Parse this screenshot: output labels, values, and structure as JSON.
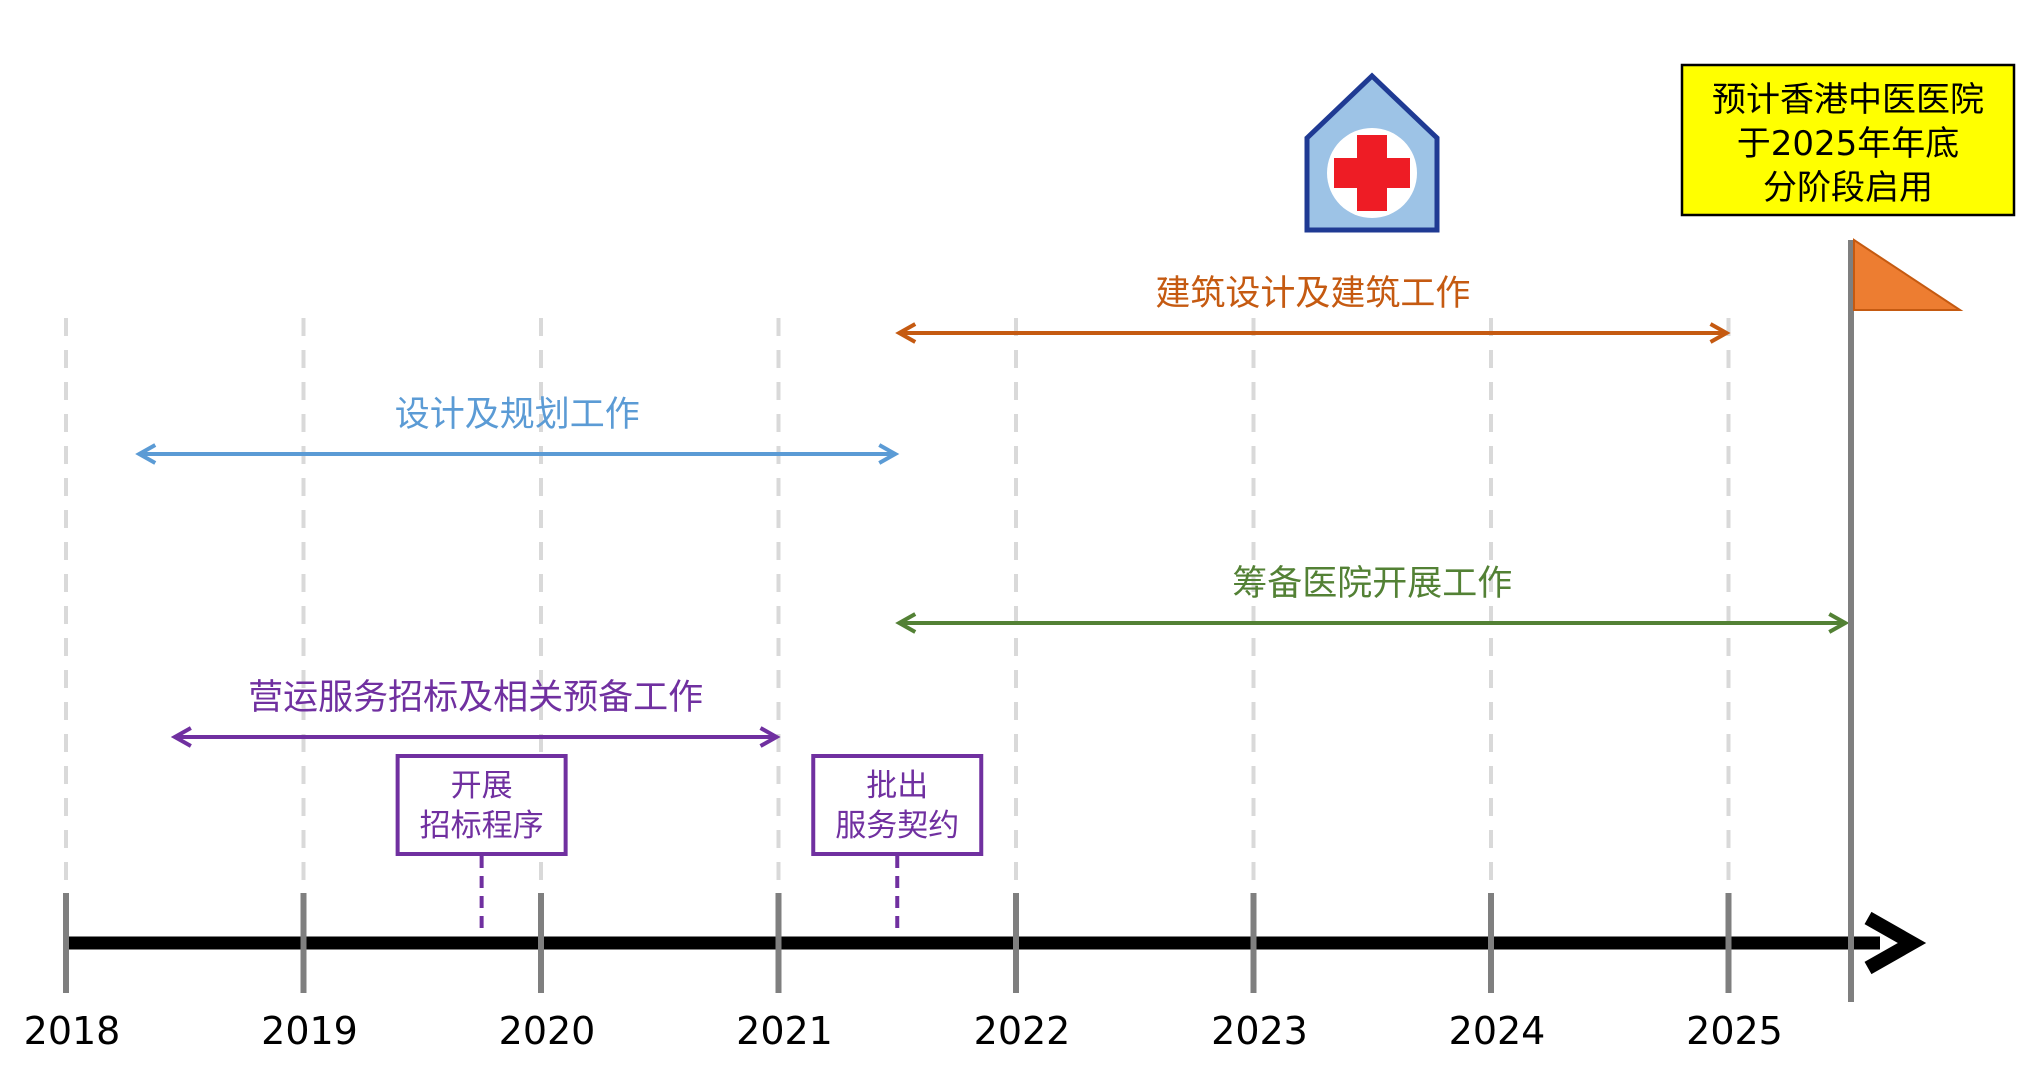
{
  "timeline": {
    "years": [
      "2018",
      "2019",
      "2020",
      "2021",
      "2022",
      "2023",
      "2024",
      "2025"
    ]
  },
  "milestone": {
    "lines": [
      "预计香港中医医院",
      "于2025年年底",
      "分阶段启用"
    ],
    "box_color": "#ffff00"
  },
  "hospital_icon": {
    "name": "hospital-icon",
    "fill": "#9dc3e6",
    "outline": "#1f3a93",
    "cross": "#ee1c25"
  },
  "phases": [
    {
      "id": "design-planning",
      "label": "设计及规划工作",
      "color": "#5b9bd5",
      "start": 2018.3,
      "end": 2021.5
    },
    {
      "id": "construction",
      "label": "建筑设计及建筑工作",
      "color": "#c55a11",
      "start": 2021.5,
      "end": 2025.0
    },
    {
      "id": "hospital-preparation",
      "label": "筹备医院开展工作",
      "color": "#538135",
      "start": 2021.5,
      "end": 2025.5
    },
    {
      "id": "operation-tender",
      "label": "营运服务招标及相关预备工作",
      "color": "#7030a0",
      "start": 2018.45,
      "end": 2021.0
    }
  ],
  "events": [
    {
      "id": "start-tender",
      "lines": [
        "开展",
        "招标程序"
      ],
      "at": 2019.75,
      "color": "#7030a0"
    },
    {
      "id": "award-contract",
      "lines": [
        "批出",
        "服务契约"
      ],
      "at": 2021.5,
      "color": "#7030a0"
    }
  ],
  "flag": {
    "at": 2025.5,
    "color": "#ed7d31"
  }
}
